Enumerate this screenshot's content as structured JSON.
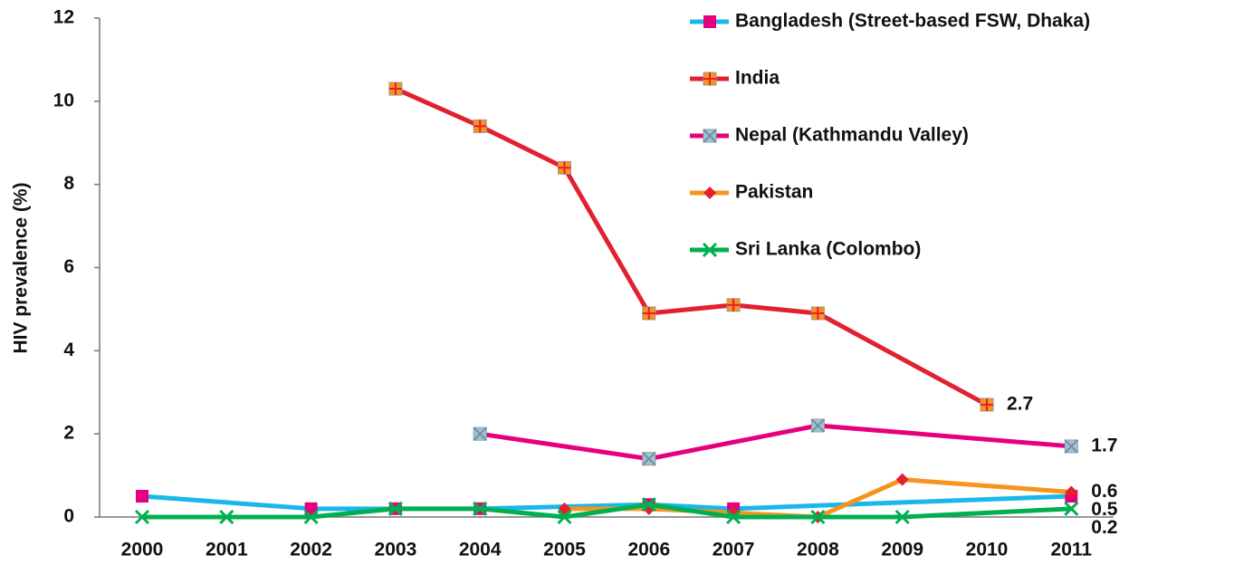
{
  "chart_data": {
    "type": "line",
    "ylabel": "HIV prevalence (%)",
    "categories": [
      "2000",
      "2001",
      "2002",
      "2003",
      "2004",
      "2005",
      "2006",
      "2007",
      "2008",
      "2009",
      "2010",
      "2011"
    ],
    "ylim": [
      0,
      12
    ],
    "yticks": [
      0,
      2,
      4,
      6,
      8,
      10,
      12
    ],
    "connect_gaps": true,
    "legend": "top-right",
    "series": [
      {
        "name": "Bangladesh (Street-based FSW, Dhaka)",
        "color": "#1ab7ea",
        "marker": "square",
        "marker_color": "#e6007e",
        "values": [
          0.5,
          null,
          0.2,
          0.2,
          0.2,
          null,
          0.3,
          0.2,
          null,
          null,
          null,
          0.5
        ],
        "value_labels": [
          null,
          null,
          null,
          null,
          null,
          null,
          null,
          null,
          null,
          null,
          null,
          "0.5"
        ]
      },
      {
        "name": "India",
        "color": "#e3202e",
        "marker": "square-plus",
        "marker_color": "#f7941d",
        "values": [
          null,
          null,
          null,
          10.3,
          9.4,
          8.4,
          4.9,
          5.1,
          4.9,
          null,
          2.7,
          null
        ],
        "value_labels": [
          null,
          null,
          null,
          null,
          null,
          null,
          null,
          null,
          null,
          null,
          "2.7",
          null
        ]
      },
      {
        "name": "Nepal (Kathmandu Valley)",
        "color": "#e6007e",
        "marker": "square-x",
        "marker_color": "#8ccbe6",
        "values": [
          null,
          null,
          null,
          null,
          2.0,
          null,
          1.4,
          null,
          2.2,
          null,
          null,
          1.7
        ],
        "value_labels": [
          null,
          null,
          null,
          null,
          null,
          null,
          null,
          null,
          null,
          null,
          null,
          "1.7"
        ]
      },
      {
        "name": "Pakistan",
        "color": "#f7941d",
        "marker": "diamond",
        "marker_color": "#e3202e",
        "values": [
          null,
          null,
          null,
          null,
          null,
          0.2,
          0.2,
          0.1,
          0.0,
          0.9,
          null,
          0.6
        ],
        "value_labels": [
          null,
          null,
          null,
          null,
          null,
          null,
          null,
          null,
          null,
          null,
          null,
          "0.6"
        ]
      },
      {
        "name": "Sri Lanka (Colombo)",
        "color": "#00b050",
        "marker": "x",
        "marker_color": "#00b050",
        "values": [
          0,
          0,
          0,
          0.2,
          0.2,
          0,
          0.3,
          0,
          0,
          0,
          null,
          0.2
        ],
        "value_labels": [
          null,
          null,
          null,
          null,
          null,
          null,
          null,
          null,
          null,
          null,
          null,
          "0.2"
        ]
      }
    ]
  }
}
